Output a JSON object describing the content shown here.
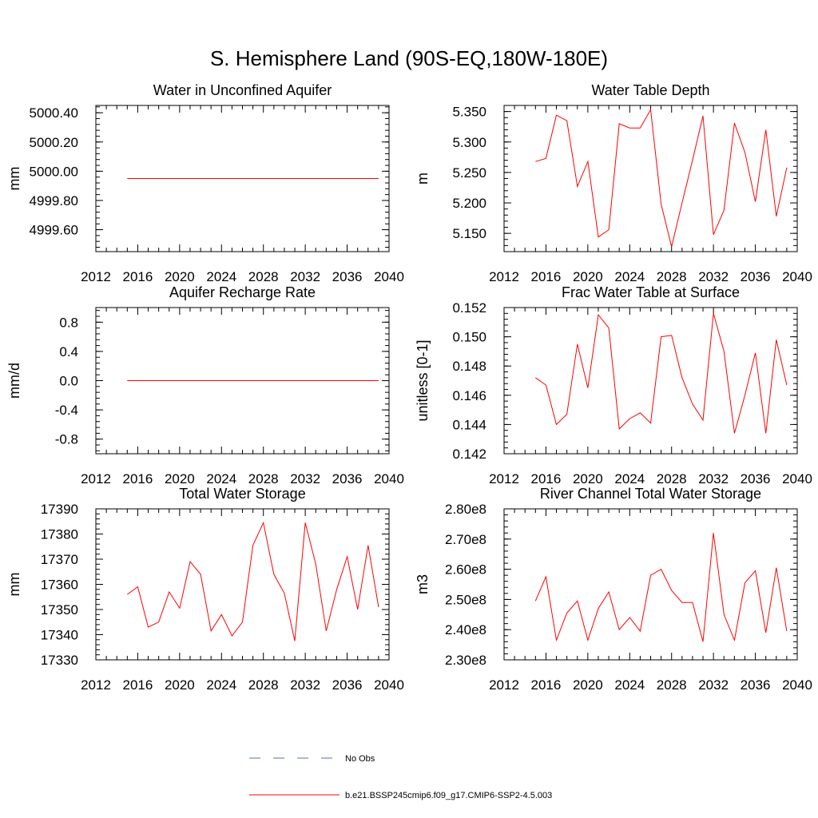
{
  "figure": {
    "title": "S. Hemisphere Land (90S-EQ,180W-180E)"
  },
  "legend": {
    "obs_label": "No Obs",
    "model_label": "b.e21.BSSP245cmip6.f09_g17.CMIP6-SSP2-4.5.003",
    "obs_color": "#5a6fbf",
    "model_color": "#ff0000"
  },
  "chart_data": [
    {
      "type": "line",
      "title": "Water in Unconfined Aquifer",
      "ylabel": "mm",
      "xlim": [
        2012,
        2040
      ],
      "ylim": [
        4999.45,
        5000.45
      ],
      "xticks": [
        2012,
        2016,
        2020,
        2024,
        2028,
        2032,
        2036,
        2040
      ],
      "xtick_labels": [
        "2012",
        "2016",
        "2020",
        "2024",
        "2028",
        "2032",
        "2036",
        "2040"
      ],
      "yticks": [
        4999.6,
        4999.8,
        5000.0,
        5000.2,
        5000.4
      ],
      "ytick_labels": [
        "4999.60",
        "4999.80",
        "5000.00",
        "5000.20",
        "5000.40"
      ],
      "x": [
        2015,
        2016,
        2017,
        2018,
        2019,
        2020,
        2021,
        2022,
        2023,
        2024,
        2025,
        2026,
        2027,
        2028,
        2029,
        2030,
        2031,
        2032,
        2033,
        2034,
        2035,
        2036,
        2037,
        2038,
        2039
      ],
      "series": [
        {
          "values": [
            4999.95,
            4999.95,
            4999.95,
            4999.95,
            4999.95,
            4999.95,
            4999.95,
            4999.95,
            4999.95,
            4999.95,
            4999.95,
            4999.95,
            4999.95,
            4999.95,
            4999.95,
            4999.95,
            4999.95,
            4999.95,
            4999.95,
            4999.95,
            4999.95,
            4999.95,
            4999.95,
            4999.95,
            4999.95
          ],
          "color": "#ff0000"
        }
      ]
    },
    {
      "type": "line",
      "title": "Water Table Depth",
      "ylabel": "m",
      "xlim": [
        2012,
        2040
      ],
      "ylim": [
        5.12,
        5.36
      ],
      "xticks": [
        2012,
        2016,
        2020,
        2024,
        2028,
        2032,
        2036,
        2040
      ],
      "xtick_labels": [
        "2012",
        "2016",
        "2020",
        "2024",
        "2028",
        "2032",
        "2036",
        "2040"
      ],
      "yticks": [
        5.15,
        5.2,
        5.25,
        5.3,
        5.35
      ],
      "ytick_labels": [
        "5.150",
        "5.200",
        "5.250",
        "5.300",
        "5.350"
      ],
      "x": [
        2015,
        2016,
        2017,
        2018,
        2019,
        2020,
        2021,
        2022,
        2023,
        2024,
        2025,
        2026,
        2027,
        2028,
        2029,
        2030,
        2031,
        2032,
        2033,
        2034,
        2035,
        2036,
        2037,
        2038,
        2039
      ],
      "series": [
        {
          "values": [
            5.268,
            5.273,
            5.344,
            5.335,
            5.227,
            5.268,
            5.144,
            5.156,
            5.33,
            5.323,
            5.323,
            5.353,
            5.198,
            5.128,
            5.2,
            5.27,
            5.343,
            5.148,
            5.188,
            5.331,
            5.283,
            5.202,
            5.32,
            5.178,
            5.258
          ],
          "color": "#ff0000"
        }
      ]
    },
    {
      "type": "line",
      "title": "Aquifer Recharge Rate",
      "ylabel": "mm/d",
      "xlim": [
        2012,
        2040
      ],
      "ylim": [
        -1.0,
        1.0
      ],
      "xticks": [
        2012,
        2016,
        2020,
        2024,
        2028,
        2032,
        2036,
        2040
      ],
      "xtick_labels": [
        "2012",
        "2016",
        "2020",
        "2024",
        "2028",
        "2032",
        "2036",
        "2040"
      ],
      "yticks": [
        -0.8,
        -0.4,
        0.0,
        0.4,
        0.8
      ],
      "ytick_labels": [
        "-0.8",
        "-0.4",
        "0.0",
        "0.4",
        "0.8"
      ],
      "x": [
        2015,
        2016,
        2017,
        2018,
        2019,
        2020,
        2021,
        2022,
        2023,
        2024,
        2025,
        2026,
        2027,
        2028,
        2029,
        2030,
        2031,
        2032,
        2033,
        2034,
        2035,
        2036,
        2037,
        2038,
        2039
      ],
      "series": [
        {
          "values": [
            0,
            0,
            0,
            0,
            0,
            0,
            0,
            0,
            0,
            0,
            0,
            0,
            0,
            0,
            0,
            0,
            0,
            0,
            0,
            0,
            0,
            0,
            0,
            0,
            0
          ],
          "color": "#ff0000"
        }
      ]
    },
    {
      "type": "line",
      "title": "Frac Water Table at Surface",
      "ylabel": "unitless [0-1]",
      "xlim": [
        2012,
        2040
      ],
      "ylim": [
        0.142,
        0.152
      ],
      "xticks": [
        2012,
        2016,
        2020,
        2024,
        2028,
        2032,
        2036,
        2040
      ],
      "xtick_labels": [
        "2012",
        "2016",
        "2020",
        "2024",
        "2028",
        "2032",
        "2036",
        "2040"
      ],
      "yticks": [
        0.142,
        0.144,
        0.146,
        0.148,
        0.15,
        0.152
      ],
      "ytick_labels": [
        "0.142",
        "0.144",
        "0.146",
        "0.148",
        "0.150",
        "0.152"
      ],
      "x": [
        2015,
        2016,
        2017,
        2018,
        2019,
        2020,
        2021,
        2022,
        2023,
        2024,
        2025,
        2026,
        2027,
        2028,
        2029,
        2030,
        2031,
        2032,
        2033,
        2034,
        2035,
        2036,
        2037,
        2038,
        2039
      ],
      "series": [
        {
          "values": [
            0.1472,
            0.1467,
            0.144,
            0.1447,
            0.1495,
            0.1465,
            0.1515,
            0.1506,
            0.1437,
            0.1444,
            0.1448,
            0.1441,
            0.15,
            0.1501,
            0.1472,
            0.1454,
            0.1443,
            0.1516,
            0.149,
            0.1434,
            0.146,
            0.1489,
            0.1434,
            0.1498,
            0.1467
          ],
          "color": "#ff0000"
        }
      ]
    },
    {
      "type": "line",
      "title": "Total Water Storage",
      "ylabel": "mm",
      "xlim": [
        2012,
        2040
      ],
      "ylim": [
        17330,
        17390
      ],
      "xticks": [
        2012,
        2016,
        2020,
        2024,
        2028,
        2032,
        2036,
        2040
      ],
      "xtick_labels": [
        "2012",
        "2016",
        "2020",
        "2024",
        "2028",
        "2032",
        "2036",
        "2040"
      ],
      "yticks": [
        17330,
        17340,
        17350,
        17360,
        17370,
        17380,
        17390
      ],
      "ytick_labels": [
        "17330",
        "17340",
        "17350",
        "17360",
        "17370",
        "17380",
        "17390"
      ],
      "x": [
        2015,
        2016,
        2017,
        2018,
        2019,
        2020,
        2021,
        2022,
        2023,
        2024,
        2025,
        2026,
        2027,
        2028,
        2029,
        2030,
        2031,
        2032,
        2033,
        2034,
        2035,
        2036,
        2037,
        2038,
        2039
      ],
      "series": [
        {
          "values": [
            17356,
            17359,
            17343,
            17345,
            17357,
            17350.5,
            17369,
            17364,
            17341.5,
            17348,
            17339.5,
            17345,
            17375.5,
            17384.5,
            17364,
            17356.5,
            17337.5,
            17384.5,
            17368,
            17341.5,
            17358,
            17371,
            17350,
            17375.5,
            17351
          ],
          "color": "#ff0000"
        }
      ]
    },
    {
      "type": "line",
      "title": "River Channel Total Water Storage",
      "ylabel": "m3",
      "xlim": [
        2012,
        2040
      ],
      "ylim": [
        230000000.0,
        280000000.0
      ],
      "xticks": [
        2012,
        2016,
        2020,
        2024,
        2028,
        2032,
        2036,
        2040
      ],
      "xtick_labels": [
        "2012",
        "2016",
        "2020",
        "2024",
        "2028",
        "2032",
        "2036",
        "2040"
      ],
      "yticks": [
        230000000.0,
        240000000.0,
        250000000.0,
        260000000.0,
        270000000.0,
        280000000.0
      ],
      "ytick_labels": [
        "2.30e8",
        "2.40e8",
        "2.50e8",
        "2.60e8",
        "2.70e8",
        "2.80e8"
      ],
      "x": [
        2015,
        2016,
        2017,
        2018,
        2019,
        2020,
        2021,
        2022,
        2023,
        2024,
        2025,
        2026,
        2027,
        2028,
        2029,
        2030,
        2031,
        2032,
        2033,
        2034,
        2035,
        2036,
        2037,
        2038,
        2039
      ],
      "series": [
        {
          "values": [
            249500000.0,
            257500000.0,
            236500000.0,
            245500000.0,
            249500000.0,
            236500000.0,
            247000000.0,
            252500000.0,
            240000000.0,
            244000000.0,
            239500000.0,
            258000000.0,
            260000000.0,
            253000000.0,
            249000000.0,
            249000000.0,
            236000000.0,
            272000000.0,
            245000000.0,
            236500000.0,
            255500000.0,
            259500000.0,
            239000000.0,
            260500000.0,
            239500000.0
          ],
          "color": "#ff0000"
        }
      ]
    }
  ]
}
